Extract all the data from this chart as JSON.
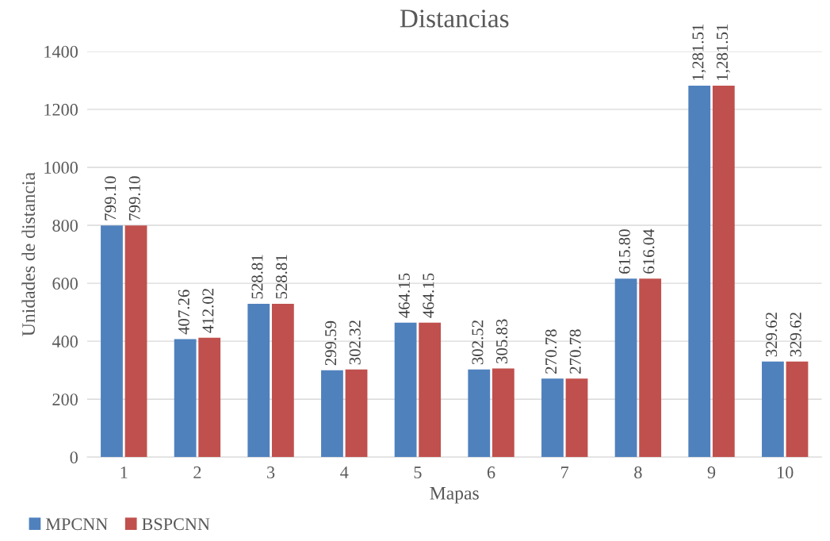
{
  "chart_data": {
    "type": "bar",
    "title": "Distancias",
    "xlabel": "Mapas",
    "ylabel": "Unidades de distancia",
    "categories": [
      "1",
      "2",
      "3",
      "4",
      "5",
      "6",
      "7",
      "8",
      "9",
      "10"
    ],
    "series": [
      {
        "name": "MPCNN",
        "color": "#4f81bd",
        "values": [
          799.1,
          407.26,
          528.81,
          299.59,
          464.15,
          302.52,
          270.78,
          615.8,
          1281.51,
          329.62
        ],
        "value_labels": [
          "799.10",
          "407.26",
          "528.81",
          "299.59",
          "464.15",
          "302.52",
          "270.78",
          "615.80",
          "1,281.51",
          "329.62"
        ]
      },
      {
        "name": "BSPCNN",
        "color": "#c0504d",
        "values": [
          799.1,
          412.02,
          528.81,
          302.32,
          464.15,
          305.83,
          270.78,
          616.04,
          1281.51,
          329.62
        ],
        "value_labels": [
          "799.10",
          "412.02",
          "528.81",
          "302.32",
          "464.15",
          "305.83",
          "270.78",
          "616.04",
          "1,281.51",
          "329.62"
        ]
      }
    ],
    "ylim": [
      0,
      1400
    ],
    "yticks": [
      0,
      200,
      400,
      600,
      800,
      1000,
      1200,
      1400
    ],
    "grid": "y",
    "legend": "bottom left"
  }
}
